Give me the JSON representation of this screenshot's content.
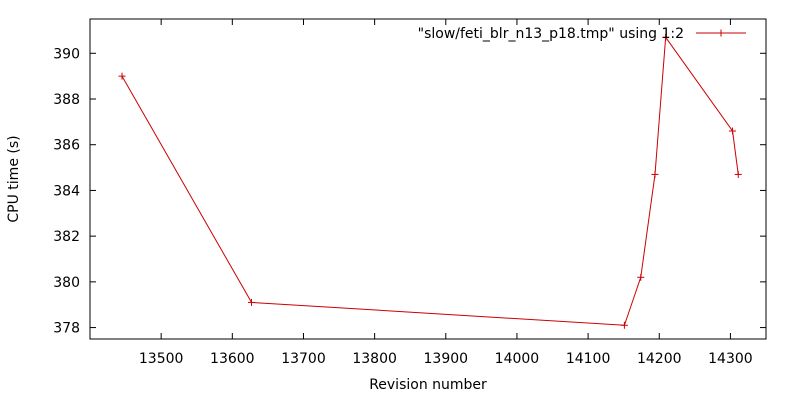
{
  "chart_data": {
    "type": "line",
    "title": "",
    "xlabel": "Revision number",
    "ylabel": "CPU time (s)",
    "xlim": [
      13400,
      14350
    ],
    "ylim": [
      377.5,
      391.5
    ],
    "xticks": [
      13500,
      13600,
      13700,
      13800,
      13900,
      14000,
      14100,
      14200,
      14300
    ],
    "yticks": [
      378,
      380,
      382,
      384,
      386,
      388,
      390
    ],
    "grid": false,
    "legend_position": "top-right",
    "series": [
      {
        "name": "\"slow/feti_blr_n13_p18.tmp\" using 1:2",
        "color": "#cc0000",
        "marker": "plus",
        "points": [
          {
            "x": 13445,
            "y": 389.0
          },
          {
            "x": 13627,
            "y": 379.1
          },
          {
            "x": 14151,
            "y": 378.1
          },
          {
            "x": 14174,
            "y": 380.2
          },
          {
            "x": 14194,
            "y": 384.7
          },
          {
            "x": 14209,
            "y": 390.7
          },
          {
            "x": 14303,
            "y": 386.6
          },
          {
            "x": 14311,
            "y": 384.7
          }
        ]
      }
    ]
  }
}
